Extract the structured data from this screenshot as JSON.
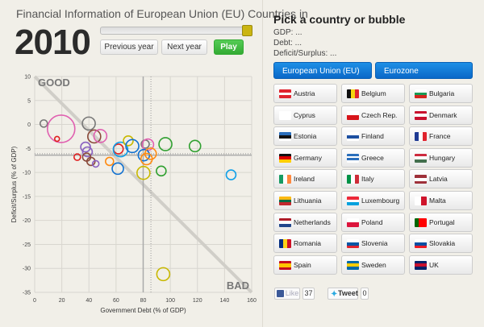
{
  "header": {
    "title": "Financial Information of European Union (EU) Countries in",
    "year": "2010",
    "slider_value": 1.0,
    "prev_label": "Previous year",
    "next_label": "Next year",
    "play_label": "Play",
    "slider_color": "#cbb511",
    "play_color": "#44bb44"
  },
  "panel": {
    "heading": "Pick a country or bubble",
    "gdp": "GDP: ...",
    "debt": "Debt: ...",
    "deficit": "Deficit/Surplus: ...",
    "eu_label": "European Union (EU)",
    "eurozone_label": "Eurozone",
    "accent": "#0a78d8"
  },
  "countries": [
    {
      "name": "Austria",
      "flag": [
        "#e0242e",
        "#fff",
        "#e0242e"
      ],
      "dir": "h"
    },
    {
      "name": "Belgium",
      "flag": [
        "#111",
        "#f5d40f",
        "#e0242e"
      ],
      "dir": "v"
    },
    {
      "name": "Bulgaria",
      "flag": [
        "#fff",
        "#1a9a55",
        "#d5261e"
      ],
      "dir": "h"
    },
    {
      "name": "Cyprus",
      "flag": [
        "#fff"
      ],
      "dir": "h"
    },
    {
      "name": "Czech Rep.",
      "flag": [
        "#fff",
        "#d7141a"
      ],
      "dir": "h"
    },
    {
      "name": "Denmark",
      "flag": [
        "#c8102e",
        "#fff",
        "#c8102e"
      ],
      "dir": "h"
    },
    {
      "name": "Estonia",
      "flag": [
        "#2a6ebb",
        "#111",
        "#fff"
      ],
      "dir": "h"
    },
    {
      "name": "Finland",
      "flag": [
        "#fff",
        "#1c4fa0",
        "#fff"
      ],
      "dir": "h"
    },
    {
      "name": "France",
      "flag": [
        "#1f3a93",
        "#fff",
        "#e0242e"
      ],
      "dir": "v"
    },
    {
      "name": "Germany",
      "flag": [
        "#111",
        "#dd0000",
        "#ffce00"
      ],
      "dir": "h"
    },
    {
      "name": "Greece",
      "flag": [
        "#2a6ebb",
        "#fff",
        "#2a6ebb",
        "#fff"
      ],
      "dir": "h"
    },
    {
      "name": "Hungary",
      "flag": [
        "#cd2a3e",
        "#fff",
        "#436f4d"
      ],
      "dir": "h"
    },
    {
      "name": "Ireland",
      "flag": [
        "#169b62",
        "#fff",
        "#ff883e"
      ],
      "dir": "v"
    },
    {
      "name": "Italy",
      "flag": [
        "#009246",
        "#fff",
        "#ce2b37"
      ],
      "dir": "v"
    },
    {
      "name": "Latvia",
      "flag": [
        "#9e3039",
        "#fff",
        "#9e3039"
      ],
      "dir": "h"
    },
    {
      "name": "Lithuania",
      "flag": [
        "#fdb913",
        "#006a44",
        "#c1272d"
      ],
      "dir": "h"
    },
    {
      "name": "Luxembourg",
      "flag": [
        "#ed2939",
        "#fff",
        "#00a1de"
      ],
      "dir": "h"
    },
    {
      "name": "Malta",
      "flag": [
        "#fff",
        "#cf142b"
      ],
      "dir": "v"
    },
    {
      "name": "Netherlands",
      "flag": [
        "#ae1c28",
        "#fff",
        "#21468b"
      ],
      "dir": "h"
    },
    {
      "name": "Poland",
      "flag": [
        "#fff",
        "#dc143c"
      ],
      "dir": "h"
    },
    {
      "name": "Portugal",
      "flag": [
        "#006600",
        "#ff0000",
        "#ff0000"
      ],
      "dir": "v"
    },
    {
      "name": "Romania",
      "flag": [
        "#002b7f",
        "#fcd116",
        "#ce1126"
      ],
      "dir": "v"
    },
    {
      "name": "Slovenia",
      "flag": [
        "#fff",
        "#0055a4",
        "#e0242e"
      ],
      "dir": "h"
    },
    {
      "name": "Slovakia",
      "flag": [
        "#fff",
        "#0b4ea2",
        "#ee1c25"
      ],
      "dir": "h"
    },
    {
      "name": "Spain",
      "flag": [
        "#c60b1e",
        "#ffc400",
        "#ffc400",
        "#c60b1e"
      ],
      "dir": "h"
    },
    {
      "name": "Sweden",
      "flag": [
        "#006aa7",
        "#fecc00",
        "#006aa7"
      ],
      "dir": "h"
    },
    {
      "name": "UK",
      "flag": [
        "#012169",
        "#c8102e",
        "#012169"
      ],
      "dir": "h"
    }
  ],
  "social": {
    "like_label": "Like",
    "like_count": "37",
    "tweet_label": "Tweet",
    "tweet_count": "0"
  },
  "chart_data": {
    "type": "scatter",
    "xlabel": "Government Debt (% of GDP)",
    "ylabel": "Deficit/Surplus (% of GDP)",
    "xlim": [
      0,
      160
    ],
    "ylim": [
      -35,
      10
    ],
    "xticks": [
      0,
      20,
      40,
      60,
      80,
      100,
      120,
      140,
      160
    ],
    "yticks": [
      10,
      5,
      0,
      -5,
      -10,
      -15,
      -20,
      -25,
      -30,
      -35
    ],
    "grid": true,
    "annotations": {
      "good": "GOOD",
      "bad": "BAD"
    },
    "reference_lines": {
      "debt_limit": 80,
      "deficit_limit": -6.4,
      "avg_debt": 85.7,
      "avg_deficit": -6.1,
      "diagonal": [
        [
          0,
          10
        ],
        [
          160,
          -35
        ]
      ]
    },
    "points": [
      {
        "x": 6.7,
        "y": 0.2,
        "size": 4.5,
        "color": "#777777"
      },
      {
        "x": 19.5,
        "y": -0.9,
        "size": 17,
        "color": "#e060b0"
      },
      {
        "x": 16.5,
        "y": -3.0,
        "size": 3,
        "color": "#e02020"
      },
      {
        "x": 39.9,
        "y": 0.2,
        "size": 8,
        "color": "#777777"
      },
      {
        "x": 43.9,
        "y": -2.5,
        "size": 8,
        "color": "#8a4a3a"
      },
      {
        "x": 48.4,
        "y": -2.4,
        "size": 8,
        "color": "#e060b0"
      },
      {
        "x": 37.5,
        "y": -4.7,
        "size": 6,
        "color": "#8a60c0"
      },
      {
        "x": 38.9,
        "y": -5.7,
        "size": 6,
        "color": "#8a60c0"
      },
      {
        "x": 31.4,
        "y": -6.8,
        "size": 4,
        "color": "#e02020"
      },
      {
        "x": 38.3,
        "y": -6.8,
        "size": 5,
        "color": "#8a4a3a"
      },
      {
        "x": 41.5,
        "y": -7.7,
        "size": 5,
        "color": "#8a4a3a"
      },
      {
        "x": 45,
        "y": -8.2,
        "size": 4,
        "color": "#8a60c0"
      },
      {
        "x": 55.2,
        "y": -7.7,
        "size": 5,
        "color": "#ff8a10"
      },
      {
        "x": 61.3,
        "y": -9.2,
        "size": 7,
        "color": "#1070d0"
      },
      {
        "x": 61.7,
        "y": -5.1,
        "size": 6,
        "color": "#e02020"
      },
      {
        "x": 63.3,
        "y": -5.2,
        "size": 9,
        "color": "#10a0e8"
      },
      {
        "x": 69,
        "y": -3.4,
        "size": 6,
        "color": "#c8b800"
      },
      {
        "x": 72,
        "y": -4.5,
        "size": 8,
        "color": "#1070d0"
      },
      {
        "x": 81.5,
        "y": -4.1,
        "size": 5,
        "color": "#777777"
      },
      {
        "x": 83.5,
        "y": -4.2,
        "size": 7,
        "color": "#e060b0"
      },
      {
        "x": 80.5,
        "y": -6.4,
        "size": 7,
        "color": "#1070d0"
      },
      {
        "x": 85.5,
        "y": -6.1,
        "size": 7,
        "color": "#ff8a10"
      },
      {
        "x": 82.5,
        "y": -7.2,
        "size": 7,
        "color": "#ff8a10"
      },
      {
        "x": 80.2,
        "y": -10.1,
        "size": 8,
        "color": "#c8b800"
      },
      {
        "x": 93.3,
        "y": -9.7,
        "size": 6,
        "color": "#30a030"
      },
      {
        "x": 96.4,
        "y": -4.1,
        "size": 8,
        "color": "#30a030"
      },
      {
        "x": 118.2,
        "y": -4.5,
        "size": 7,
        "color": "#30a030"
      },
      {
        "x": 144.8,
        "y": -10.5,
        "size": 6,
        "color": "#10a0e8"
      },
      {
        "x": 94.8,
        "y": -31.2,
        "size": 8,
        "color": "#c8b800"
      }
    ]
  }
}
